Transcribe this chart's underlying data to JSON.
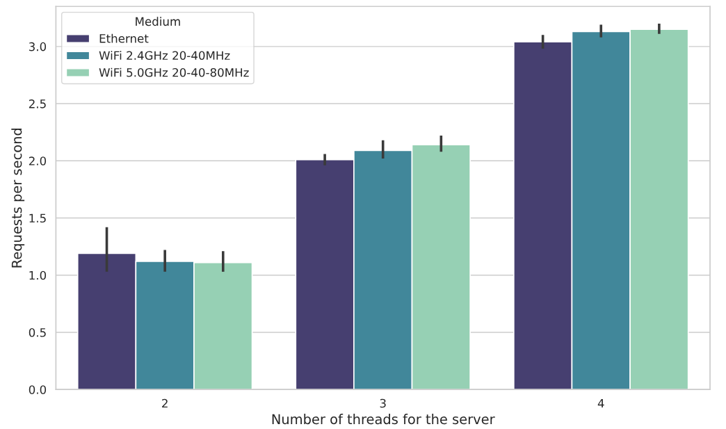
{
  "chart_data": {
    "type": "bar",
    "xlabel": "Number of threads for the server",
    "ylabel": "Requests per second",
    "legend_title": "Medium",
    "categories": [
      "2",
      "3",
      "4"
    ],
    "series": [
      {
        "name": "Ethernet",
        "color": "#463f70",
        "values": [
          1.19,
          2.01,
          3.04
        ],
        "errors": [
          [
            1.03,
            1.42
          ],
          [
            1.96,
            2.06
          ],
          [
            2.98,
            3.1
          ]
        ]
      },
      {
        "name": "WiFi 2.4GHz 20-40MHz",
        "color": "#41879a",
        "values": [
          1.12,
          2.09,
          3.13
        ],
        "errors": [
          [
            1.03,
            1.22
          ],
          [
            2.02,
            2.18
          ],
          [
            3.08,
            3.19
          ]
        ]
      },
      {
        "name": "WiFi 5.0GHz 20-40-80MHz",
        "color": "#96d0b4",
        "values": [
          1.11,
          2.14,
          3.15
        ],
        "errors": [
          [
            1.03,
            1.21
          ],
          [
            2.08,
            2.22
          ],
          [
            3.11,
            3.2
          ]
        ]
      }
    ],
    "ylim": [
      0,
      3.35
    ],
    "yticks": [
      {
        "value": 0,
        "label": "0.0"
      },
      {
        "value": 0.5,
        "label": "0.5"
      },
      {
        "value": 1,
        "label": "1.0"
      },
      {
        "value": 1.5,
        "label": "1.5"
      },
      {
        "value": 2,
        "label": "2.0"
      },
      {
        "value": 2.5,
        "label": "2.5"
      },
      {
        "value": 3,
        "label": "3.0"
      }
    ],
    "grid": "y",
    "legend": "top left"
  }
}
